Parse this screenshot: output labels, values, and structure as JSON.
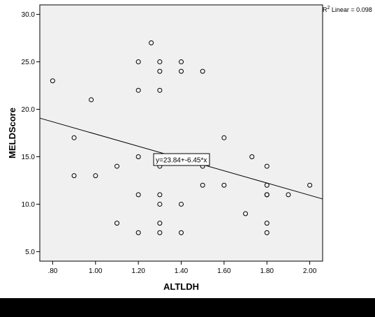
{
  "chart_data": {
    "type": "scatter",
    "xlabel": "ALTLDH",
    "ylabel": "MELDScore",
    "xlim": [
      0.74,
      2.06
    ],
    "ylim": [
      4.0,
      31.0
    ],
    "xticks": [
      0.8,
      1.0,
      1.2,
      1.4,
      1.6,
      1.8,
      2.0
    ],
    "xtick_labels": [
      ".80",
      "1.00",
      "1.20",
      "1.40",
      "1.60",
      "1.80",
      "2.00"
    ],
    "yticks": [
      5,
      10,
      15,
      20,
      25,
      30
    ],
    "ytick_labels": [
      "5.0",
      "10.0",
      "15.0",
      "20.0",
      "25.0",
      "30.0"
    ],
    "grid": false,
    "background": "#f0f0f0",
    "marker": "hollow-circle",
    "points": [
      {
        "x": 0.8,
        "y": 23
      },
      {
        "x": 0.9,
        "y": 17
      },
      {
        "x": 0.9,
        "y": 13
      },
      {
        "x": 0.98,
        "y": 21
      },
      {
        "x": 1.0,
        "y": 13
      },
      {
        "x": 1.1,
        "y": 14
      },
      {
        "x": 1.1,
        "y": 8
      },
      {
        "x": 1.2,
        "y": 25
      },
      {
        "x": 1.2,
        "y": 22
      },
      {
        "x": 1.2,
        "y": 15
      },
      {
        "x": 1.2,
        "y": 11
      },
      {
        "x": 1.2,
        "y": 7
      },
      {
        "x": 1.26,
        "y": 27
      },
      {
        "x": 1.3,
        "y": 25
      },
      {
        "x": 1.3,
        "y": 24
      },
      {
        "x": 1.3,
        "y": 22
      },
      {
        "x": 1.3,
        "y": 14
      },
      {
        "x": 1.3,
        "y": 11
      },
      {
        "x": 1.3,
        "y": 10
      },
      {
        "x": 1.3,
        "y": 8
      },
      {
        "x": 1.3,
        "y": 7
      },
      {
        "x": 1.4,
        "y": 25
      },
      {
        "x": 1.4,
        "y": 24
      },
      {
        "x": 1.4,
        "y": 10
      },
      {
        "x": 1.4,
        "y": 7
      },
      {
        "x": 1.5,
        "y": 24
      },
      {
        "x": 1.5,
        "y": 14
      },
      {
        "x": 1.5,
        "y": 12
      },
      {
        "x": 1.6,
        "y": 17
      },
      {
        "x": 1.6,
        "y": 12
      },
      {
        "x": 1.7,
        "y": 9
      },
      {
        "x": 1.73,
        "y": 15
      },
      {
        "x": 1.8,
        "y": 14
      },
      {
        "x": 1.8,
        "y": 12
      },
      {
        "x": 1.8,
        "y": 11
      },
      {
        "x": 1.8,
        "y": 11
      },
      {
        "x": 1.8,
        "y": 8
      },
      {
        "x": 1.8,
        "y": 7
      },
      {
        "x": 1.9,
        "y": 11
      },
      {
        "x": 2.0,
        "y": 12
      }
    ],
    "fit_line": {
      "intercept": 23.84,
      "slope": -6.45
    },
    "fit_equation": "y=23.84+-6.45*x",
    "r2_label_prefix": "R",
    "r2_label_sup": "2",
    "r2_label_suffix": " Linear = 0.098"
  }
}
